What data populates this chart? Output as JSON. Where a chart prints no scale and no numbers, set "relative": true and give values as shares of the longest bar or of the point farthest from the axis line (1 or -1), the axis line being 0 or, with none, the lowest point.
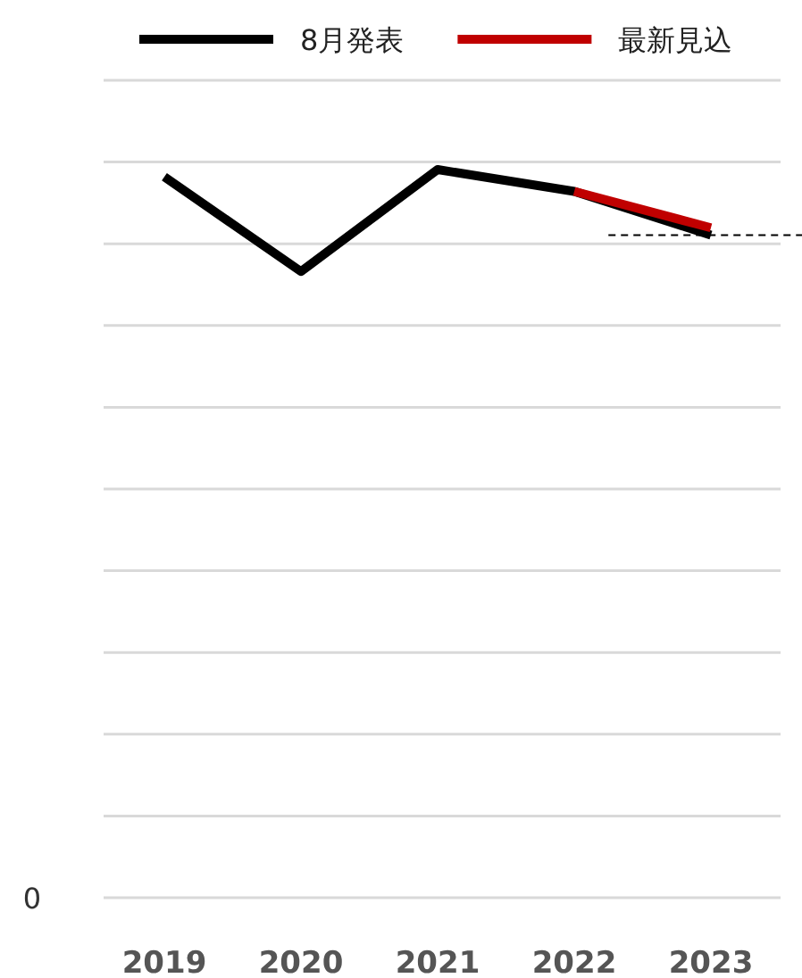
{
  "chart_data": {
    "type": "line",
    "relative": true,
    "categories": [
      "2019",
      "2020",
      "2021",
      "2022",
      "2023"
    ],
    "series": [
      {
        "name": "8月発表",
        "color": "#000000",
        "values": [
          0.99,
          0.86,
          1,
          0.97,
          0.91
        ]
      },
      {
        "name": "最新見込",
        "color": "#c00000",
        "values": [
          null,
          null,
          null,
          0.97,
          0.92
        ]
      }
    ],
    "annotations": [
      "0"
    ],
    "grid": "y",
    "legend": "top",
    "marker": "none",
    "line_style": "solid",
    "ref_lines": [
      {
        "axis": "y",
        "value": 0.91,
        "color": "#000000",
        "line_style": "dashed"
      }
    ]
  }
}
